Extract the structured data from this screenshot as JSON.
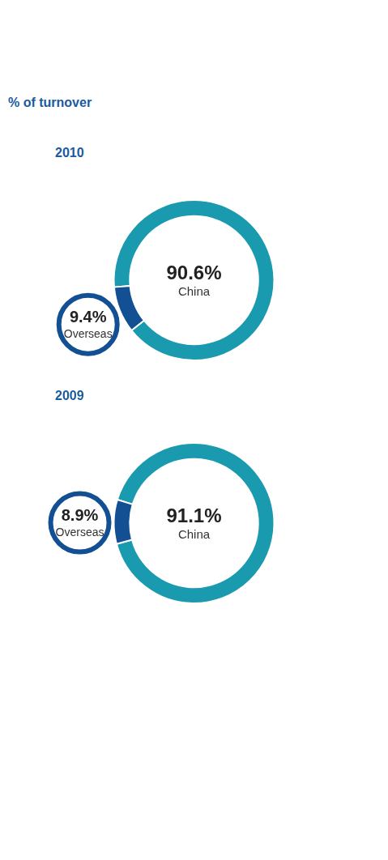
{
  "title": "% of turnover",
  "chart_data": [
    {
      "type": "doughnut",
      "title": "2010",
      "categories": [
        "China",
        "Overseas"
      ],
      "values": [
        90.6,
        9.4
      ],
      "value_labels": [
        "90.6%",
        "9.4%"
      ],
      "colors": [
        "#1a9aaf",
        "#124f93"
      ],
      "data_labels": true
    },
    {
      "type": "doughnut",
      "title": "2009",
      "categories": [
        "China",
        "Overseas"
      ],
      "values": [
        91.1,
        8.9
      ],
      "value_labels": [
        "91.1%",
        "8.9%"
      ],
      "colors": [
        "#1a9aaf",
        "#124f93"
      ],
      "data_labels": true
    }
  ]
}
